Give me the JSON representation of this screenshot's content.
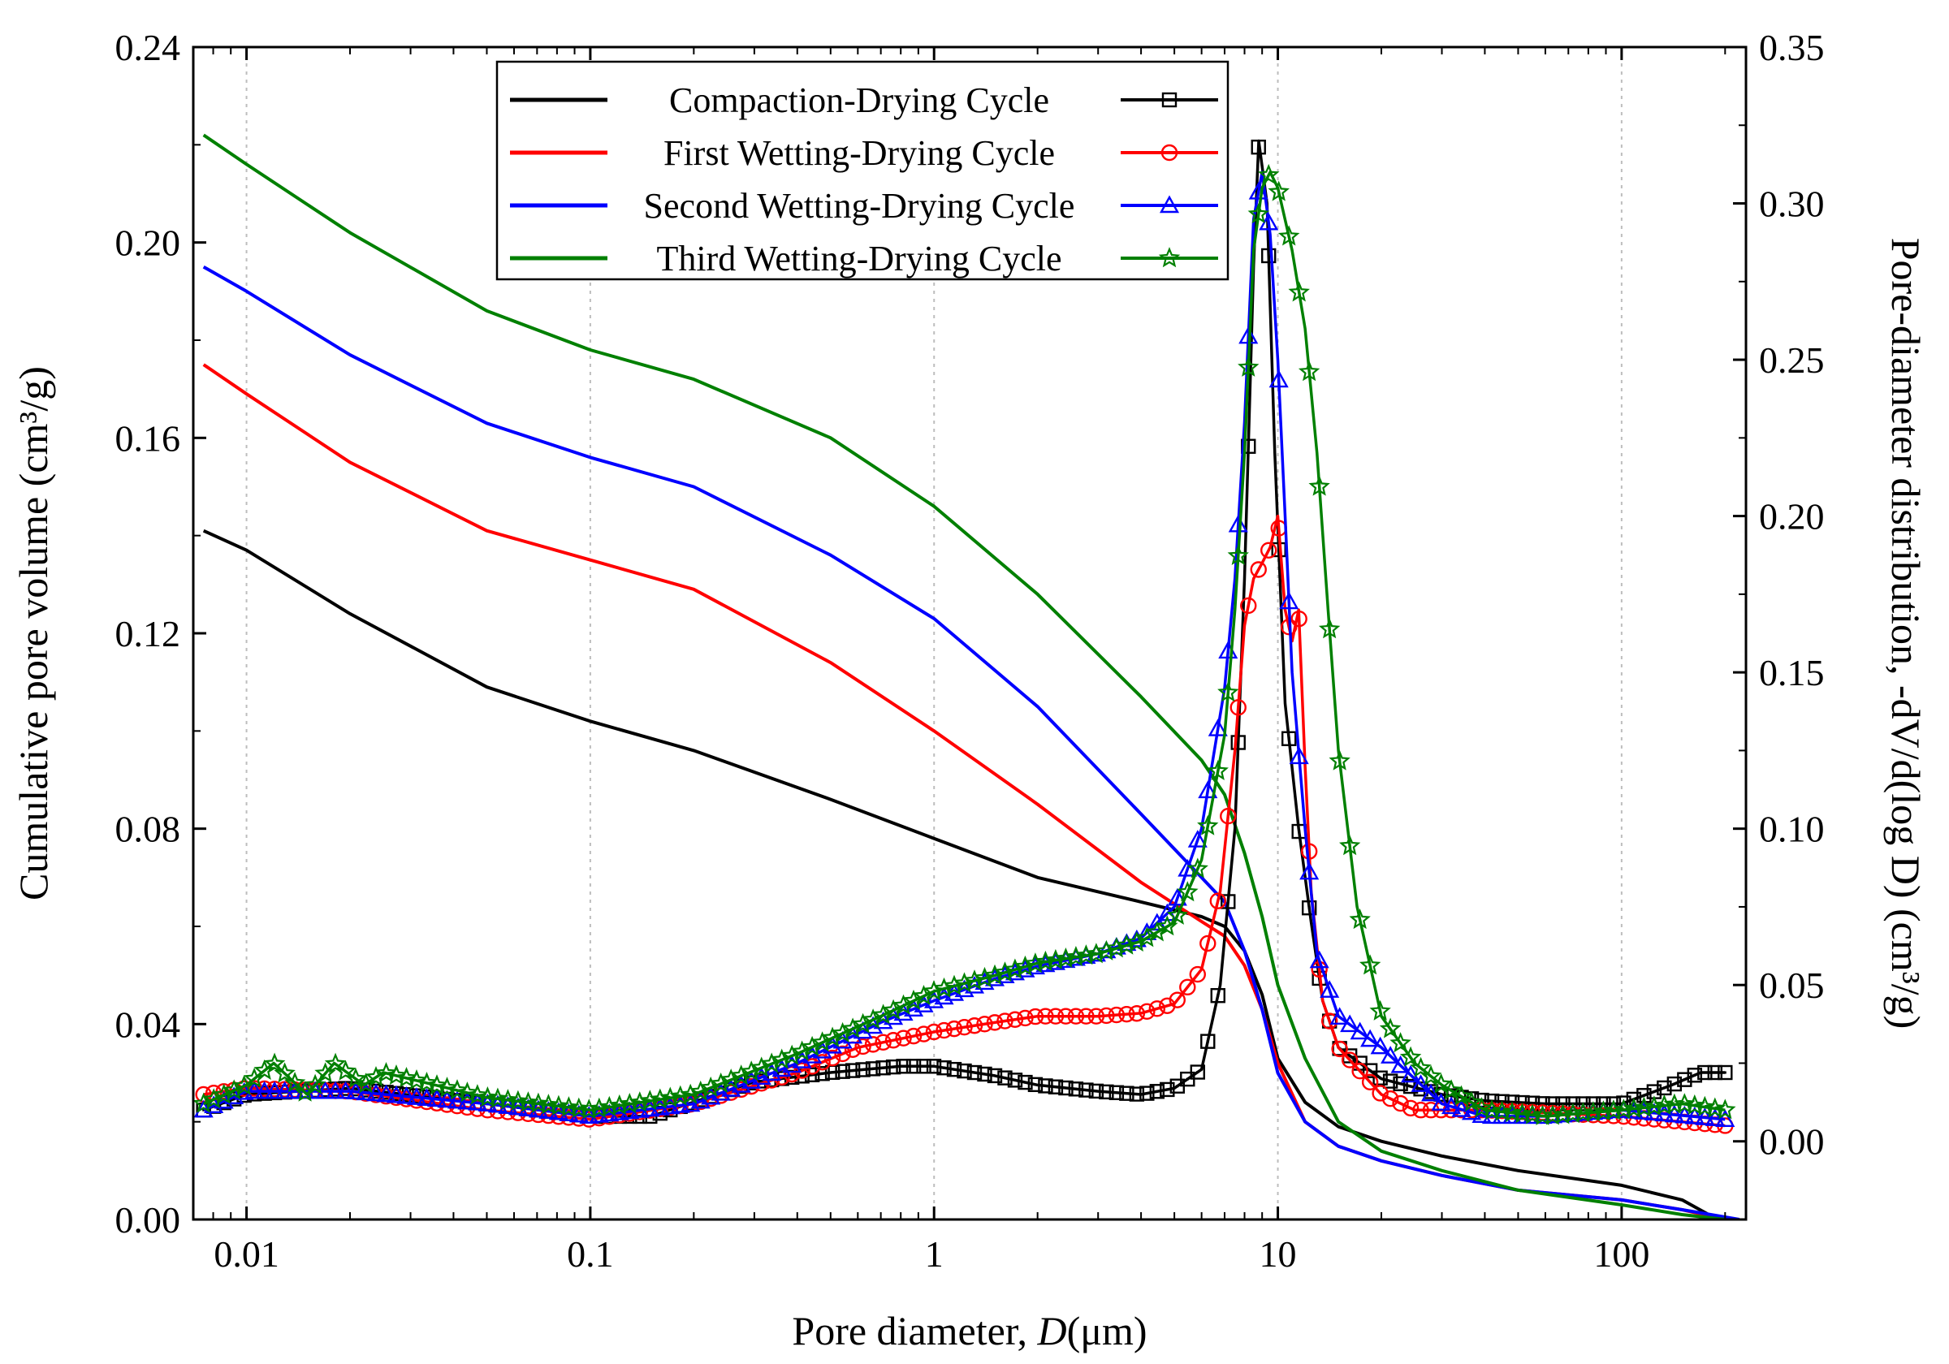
{
  "chart_data": {
    "type": "line",
    "x_scale": "log",
    "xlim": [
      0.007,
      230
    ],
    "ylim_left": [
      0,
      0.24
    ],
    "ylim_right": [
      -0.025,
      0.35
    ],
    "xlabel_prefix": "Pore diameter, ",
    "xlabel_var": "D",
    "xlabel_suffix": "(μm)",
    "ylabel_left": "Cumulative pore volume (cm³/g)",
    "ylabel_right": "Pore-diameter distribution, -dV/d(log D) (cm³/g)",
    "x_ticks": [
      {
        "value": 0.01,
        "label": "0.01"
      },
      {
        "value": 0.1,
        "label": "0.1"
      },
      {
        "value": 1,
        "label": "1"
      },
      {
        "value": 10,
        "label": "10"
      },
      {
        "value": 100,
        "label": "100"
      }
    ],
    "y_ticks_left": [
      {
        "value": 0.0,
        "label": "0.00"
      },
      {
        "value": 0.04,
        "label": "0.04"
      },
      {
        "value": 0.08,
        "label": "0.08"
      },
      {
        "value": 0.12,
        "label": "0.12"
      },
      {
        "value": 0.16,
        "label": "0.16"
      },
      {
        "value": 0.2,
        "label": "0.20"
      },
      {
        "value": 0.24,
        "label": "0.24"
      }
    ],
    "y_ticks_right": [
      {
        "value": 0.0,
        "label": "0.00"
      },
      {
        "value": 0.05,
        "label": "0.05"
      },
      {
        "value": 0.1,
        "label": "0.10"
      },
      {
        "value": 0.15,
        "label": "0.15"
      },
      {
        "value": 0.2,
        "label": "0.20"
      },
      {
        "value": 0.25,
        "label": "0.25"
      },
      {
        "value": 0.3,
        "label": "0.30"
      },
      {
        "value": 0.35,
        "label": "0.35"
      }
    ],
    "grid": "vertical dashed at decades",
    "legend_position": "top-center",
    "series": [
      {
        "name": "Compaction-Drying Cycle",
        "color": "#000000",
        "marker": "square",
        "cumulative": [
          [
            0.0075,
            0.141
          ],
          [
            0.01,
            0.137
          ],
          [
            0.02,
            0.124
          ],
          [
            0.05,
            0.109
          ],
          [
            0.1,
            0.102
          ],
          [
            0.2,
            0.096
          ],
          [
            0.5,
            0.086
          ],
          [
            1,
            0.078
          ],
          [
            2,
            0.07
          ],
          [
            4,
            0.065
          ],
          [
            6,
            0.062
          ],
          [
            7,
            0.06
          ],
          [
            8,
            0.055
          ],
          [
            9,
            0.046
          ],
          [
            10,
            0.033
          ],
          [
            12,
            0.024
          ],
          [
            15,
            0.019
          ],
          [
            20,
            0.016
          ],
          [
            30,
            0.013
          ],
          [
            50,
            0.01
          ],
          [
            100,
            0.007
          ],
          [
            150,
            0.004
          ],
          [
            190,
            0.0
          ]
        ],
        "distribution": [
          [
            0.0075,
            0.01
          ],
          [
            0.01,
            0.015
          ],
          [
            0.02,
            0.017
          ],
          [
            0.05,
            0.012
          ],
          [
            0.1,
            0.008
          ],
          [
            0.15,
            0.008
          ],
          [
            0.3,
            0.019
          ],
          [
            0.5,
            0.022
          ],
          [
            0.8,
            0.024
          ],
          [
            1,
            0.024
          ],
          [
            1.5,
            0.021
          ],
          [
            2,
            0.018
          ],
          [
            3,
            0.016
          ],
          [
            4,
            0.015
          ],
          [
            5,
            0.017
          ],
          [
            6,
            0.023
          ],
          [
            6.8,
            0.05
          ],
          [
            7.5,
            0.1
          ],
          [
            8,
            0.18
          ],
          [
            8.5,
            0.28
          ],
          [
            8.8,
            0.32
          ],
          [
            9.3,
            0.3
          ],
          [
            9.8,
            0.22
          ],
          [
            10.5,
            0.14
          ],
          [
            11.5,
            0.1
          ],
          [
            12.5,
            0.07
          ],
          [
            13.5,
            0.045
          ],
          [
            15,
            0.03
          ],
          [
            20,
            0.02
          ],
          [
            30,
            0.015
          ],
          [
            40,
            0.013
          ],
          [
            60,
            0.012
          ],
          [
            100,
            0.012
          ],
          [
            140,
            0.018
          ],
          [
            170,
            0.022
          ],
          [
            200,
            0.022
          ]
        ]
      },
      {
        "name": "First Wetting-Drying Cycle",
        "color": "#ff0000",
        "marker": "circle",
        "cumulative": [
          [
            0.0075,
            0.175
          ],
          [
            0.01,
            0.169
          ],
          [
            0.02,
            0.155
          ],
          [
            0.05,
            0.141
          ],
          [
            0.1,
            0.135
          ],
          [
            0.2,
            0.129
          ],
          [
            0.5,
            0.114
          ],
          [
            1,
            0.1
          ],
          [
            2,
            0.085
          ],
          [
            4,
            0.069
          ],
          [
            6,
            0.061
          ],
          [
            7,
            0.058
          ],
          [
            8,
            0.052
          ],
          [
            9,
            0.043
          ],
          [
            10,
            0.032
          ],
          [
            12,
            0.02
          ],
          [
            15,
            0.015
          ],
          [
            20,
            0.012
          ],
          [
            30,
            0.009
          ],
          [
            50,
            0.006
          ],
          [
            100,
            0.004
          ],
          [
            150,
            0.002
          ],
          [
            200,
            0.0
          ]
        ],
        "distribution": [
          [
            0.0075,
            0.015
          ],
          [
            0.01,
            0.017
          ],
          [
            0.02,
            0.016
          ],
          [
            0.05,
            0.01
          ],
          [
            0.1,
            0.007
          ],
          [
            0.2,
            0.012
          ],
          [
            0.4,
            0.022
          ],
          [
            0.6,
            0.03
          ],
          [
            1,
            0.035
          ],
          [
            1.5,
            0.038
          ],
          [
            2,
            0.04
          ],
          [
            3,
            0.04
          ],
          [
            4,
            0.041
          ],
          [
            5,
            0.044
          ],
          [
            6,
            0.055
          ],
          [
            6.8,
            0.08
          ],
          [
            7.5,
            0.125
          ],
          [
            8,
            0.165
          ],
          [
            8.5,
            0.18
          ],
          [
            9,
            0.185
          ],
          [
            9.5,
            0.19
          ],
          [
            10,
            0.2
          ],
          [
            10.5,
            0.17
          ],
          [
            11,
            0.16
          ],
          [
            11.5,
            0.17
          ],
          [
            12,
            0.12
          ],
          [
            12.5,
            0.08
          ],
          [
            13.5,
            0.045
          ],
          [
            15,
            0.03
          ],
          [
            20,
            0.015
          ],
          [
            25,
            0.01
          ],
          [
            40,
            0.01
          ],
          [
            100,
            0.008
          ],
          [
            200,
            0.005
          ]
        ]
      },
      {
        "name": "Second Wetting-Drying Cycle",
        "color": "#0000ff",
        "marker": "triangle",
        "cumulative": [
          [
            0.0075,
            0.195
          ],
          [
            0.01,
            0.19
          ],
          [
            0.02,
            0.177
          ],
          [
            0.05,
            0.163
          ],
          [
            0.1,
            0.156
          ],
          [
            0.2,
            0.15
          ],
          [
            0.5,
            0.136
          ],
          [
            1,
            0.123
          ],
          [
            2,
            0.105
          ],
          [
            4,
            0.083
          ],
          [
            6,
            0.07
          ],
          [
            7,
            0.065
          ],
          [
            8,
            0.055
          ],
          [
            9,
            0.043
          ],
          [
            10,
            0.03
          ],
          [
            12,
            0.02
          ],
          [
            15,
            0.015
          ],
          [
            20,
            0.012
          ],
          [
            30,
            0.009
          ],
          [
            50,
            0.006
          ],
          [
            100,
            0.004
          ],
          [
            150,
            0.002
          ],
          [
            220,
            0.0
          ]
        ],
        "distribution": [
          [
            0.0075,
            0.01
          ],
          [
            0.01,
            0.016
          ],
          [
            0.02,
            0.016
          ],
          [
            0.05,
            0.012
          ],
          [
            0.1,
            0.008
          ],
          [
            0.2,
            0.012
          ],
          [
            0.4,
            0.025
          ],
          [
            0.7,
            0.038
          ],
          [
            1,
            0.045
          ],
          [
            1.5,
            0.052
          ],
          [
            2,
            0.056
          ],
          [
            3,
            0.06
          ],
          [
            4,
            0.065
          ],
          [
            5,
            0.075
          ],
          [
            6,
            0.1
          ],
          [
            7,
            0.145
          ],
          [
            7.5,
            0.18
          ],
          [
            8,
            0.23
          ],
          [
            8.5,
            0.295
          ],
          [
            9,
            0.31
          ],
          [
            9.5,
            0.29
          ],
          [
            10,
            0.25
          ],
          [
            10.5,
            0.2
          ],
          [
            11,
            0.15
          ],
          [
            12,
            0.1
          ],
          [
            13,
            0.06
          ],
          [
            15,
            0.04
          ],
          [
            20,
            0.03
          ],
          [
            25,
            0.02
          ],
          [
            30,
            0.012
          ],
          [
            40,
            0.008
          ],
          [
            60,
            0.008
          ],
          [
            100,
            0.01
          ],
          [
            200,
            0.007
          ]
        ]
      },
      {
        "name": "Third Wetting-Drying Cycle",
        "color": "#008000",
        "marker": "star",
        "cumulative": [
          [
            0.0075,
            0.222
          ],
          [
            0.01,
            0.216
          ],
          [
            0.02,
            0.202
          ],
          [
            0.05,
            0.186
          ],
          [
            0.1,
            0.178
          ],
          [
            0.2,
            0.172
          ],
          [
            0.5,
            0.16
          ],
          [
            1,
            0.146
          ],
          [
            2,
            0.128
          ],
          [
            4,
            0.107
          ],
          [
            6,
            0.094
          ],
          [
            7,
            0.087
          ],
          [
            8,
            0.075
          ],
          [
            9,
            0.062
          ],
          [
            10,
            0.048
          ],
          [
            12,
            0.033
          ],
          [
            15,
            0.02
          ],
          [
            20,
            0.014
          ],
          [
            30,
            0.01
          ],
          [
            50,
            0.006
          ],
          [
            100,
            0.003
          ],
          [
            150,
            0.001
          ],
          [
            200,
            0.0
          ]
        ],
        "distribution": [
          [
            0.0075,
            0.012
          ],
          [
            0.01,
            0.018
          ],
          [
            0.012,
            0.025
          ],
          [
            0.015,
            0.015
          ],
          [
            0.018,
            0.025
          ],
          [
            0.022,
            0.018
          ],
          [
            0.025,
            0.022
          ],
          [
            0.05,
            0.014
          ],
          [
            0.1,
            0.01
          ],
          [
            0.2,
            0.015
          ],
          [
            0.4,
            0.028
          ],
          [
            0.7,
            0.04
          ],
          [
            1,
            0.048
          ],
          [
            1.5,
            0.053
          ],
          [
            2,
            0.057
          ],
          [
            3,
            0.06
          ],
          [
            4,
            0.064
          ],
          [
            5,
            0.07
          ],
          [
            6,
            0.09
          ],
          [
            7,
            0.13
          ],
          [
            7.5,
            0.17
          ],
          [
            8,
            0.22
          ],
          [
            8.5,
            0.285
          ],
          [
            9,
            0.305
          ],
          [
            9.5,
            0.31
          ],
          [
            10,
            0.305
          ],
          [
            11,
            0.285
          ],
          [
            12,
            0.26
          ],
          [
            13,
            0.22
          ],
          [
            14,
            0.17
          ],
          [
            15,
            0.125
          ],
          [
            17,
            0.075
          ],
          [
            20,
            0.04
          ],
          [
            25,
            0.025
          ],
          [
            30,
            0.018
          ],
          [
            40,
            0.01
          ],
          [
            60,
            0.008
          ],
          [
            100,
            0.01
          ],
          [
            150,
            0.012
          ],
          [
            200,
            0.01
          ]
        ]
      }
    ]
  }
}
